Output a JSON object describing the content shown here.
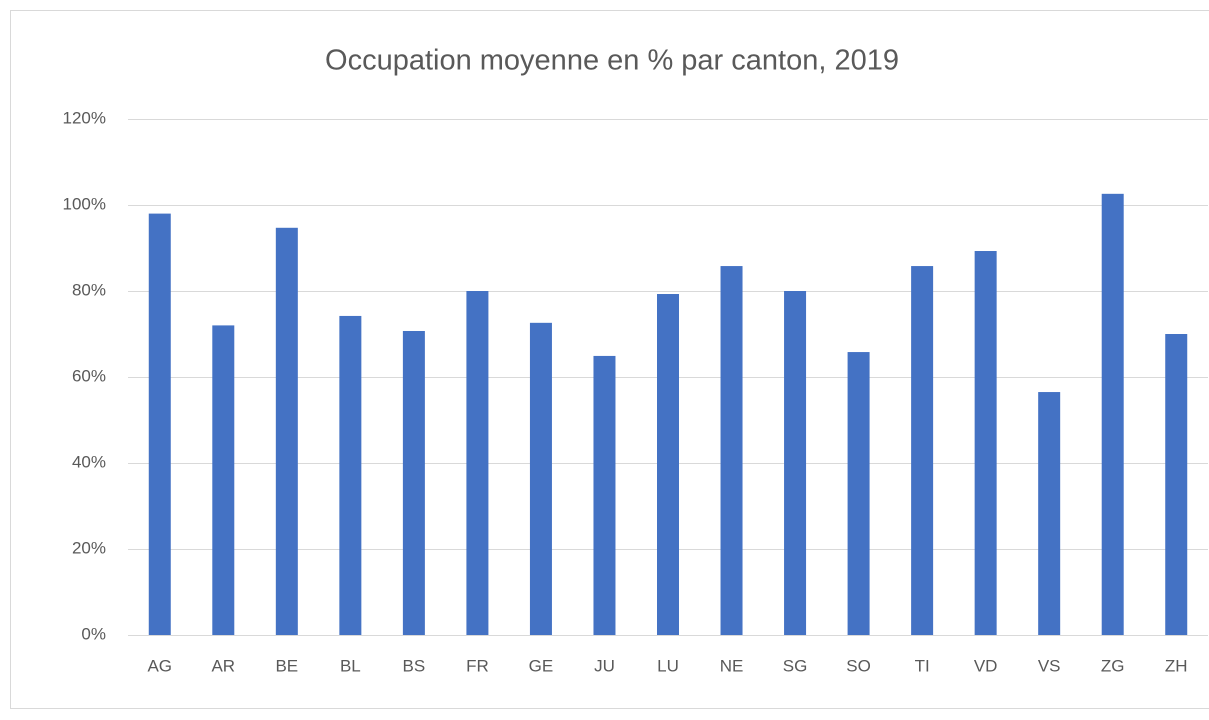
{
  "chart_data": {
    "type": "bar",
    "title": "Occupation moyenne en % par canton, 2019",
    "categories": [
      "AG",
      "AR",
      "BE",
      "BL",
      "BS",
      "FR",
      "GE",
      "JU",
      "LU",
      "NE",
      "SG",
      "SO",
      "TI",
      "VD",
      "VS",
      "ZG",
      "ZH"
    ],
    "values": [
      98,
      72,
      94.7,
      74.2,
      70.7,
      80,
      72.6,
      64.9,
      79.3,
      85.8,
      80,
      65.8,
      85.8,
      89.3,
      56.5,
      102.6,
      70
    ],
    "color": "#4472c4",
    "ylim": [
      0,
      120
    ],
    "yticks": [
      {
        "value": 0,
        "label": "0%"
      },
      {
        "value": 20,
        "label": "20%"
      },
      {
        "value": 40,
        "label": "40%"
      },
      {
        "value": 60,
        "label": "60%"
      },
      {
        "value": 80,
        "label": "80%"
      },
      {
        "value": 100,
        "label": "100%"
      },
      {
        "value": 120,
        "label": "120%"
      }
    ],
    "grid": true
  }
}
